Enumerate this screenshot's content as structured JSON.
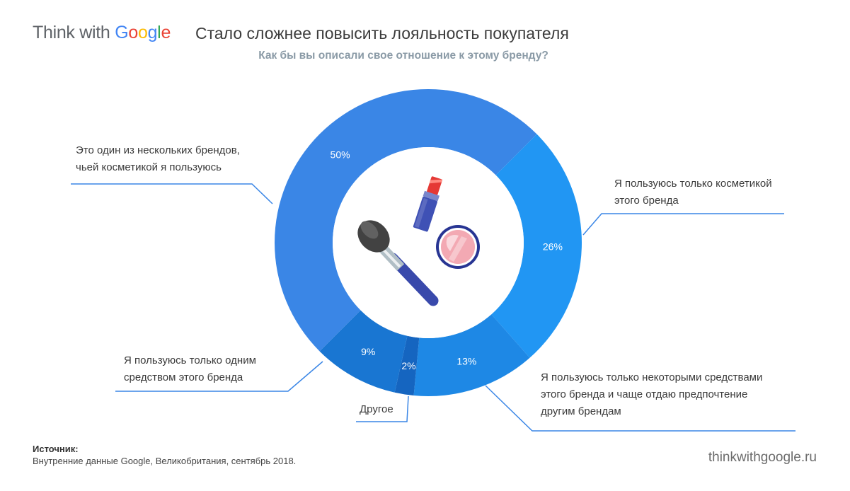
{
  "logo": {
    "think": "Think with ",
    "g1": "G",
    "g2": "o",
    "g3": "o",
    "g4": "g",
    "g5": "l",
    "g6": "e"
  },
  "header": {
    "title": "Стало сложнее повысить лояльность покупателя",
    "subtitle": "Как бы вы описали свое отношение к этому бренду?"
  },
  "chart_data": {
    "type": "pie",
    "donut": true,
    "title": "Стало сложнее повысить лояльность покупателя",
    "subtitle": "Как бы вы описали свое отношение к этому бренду?",
    "slices": [
      {
        "value": 26,
        "label": "26%",
        "name": "Я пользуюсь только косметикой этого бренда",
        "color": "#2196F3"
      },
      {
        "value": 13,
        "label": "13%",
        "name": "Я пользуюсь только некоторыми средствами этого бренда и чаще отдаю предпочтение другим брендам",
        "color": "#1e88e5"
      },
      {
        "value": 2,
        "label": "2%",
        "name": "Другое",
        "color": "#1565C0"
      },
      {
        "value": 9,
        "label": "9%",
        "name": "Я пользуюсь только одним средством этого бренда",
        "color": "#1976D2"
      },
      {
        "value": 50,
        "label": "50%",
        "name": "Это один из нескольких брендов, чьей косметикой я пользуюсь",
        "color": "#3a86e6"
      }
    ]
  },
  "labels": {
    "l26": [
      "Я пользуюсь только косметикой",
      "этого бренда"
    ],
    "l13": [
      "Я пользуюсь только некоторыми средствами",
      "этого бренда и чаще отдаю предпочтение",
      "другим брендам"
    ],
    "l2": [
      "Другое"
    ],
    "l9": [
      "Я пользуюсь только одним",
      "средством этого бренда"
    ],
    "l50": [
      "Это один из нескольких брендов,",
      "чьей косметикой я пользуюсь"
    ]
  },
  "footer": {
    "source_title": "Источник:",
    "source_text": "Внутренние данные Google, Великобритания, сентябрь 2018.",
    "site": "thinkwithgoogle.ru"
  },
  "icons": [
    "lipstick-icon",
    "makeup-brush-icon",
    "compact-powder-icon"
  ]
}
